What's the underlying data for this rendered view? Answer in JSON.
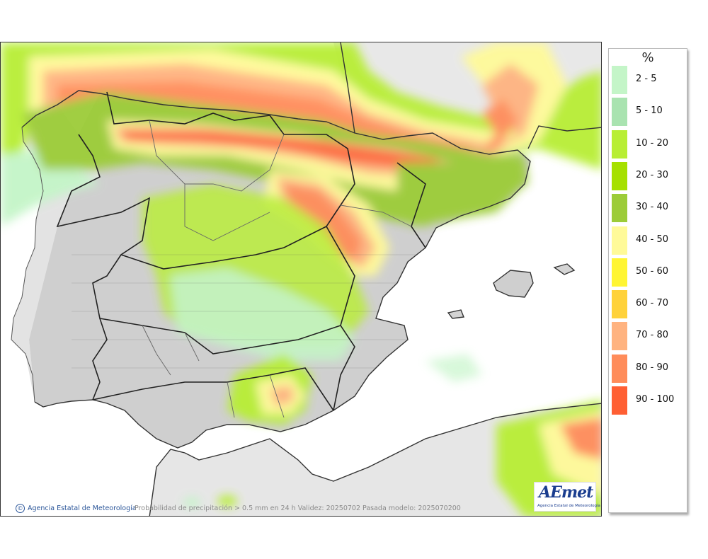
{
  "legend": {
    "title": "%",
    "items": [
      {
        "label": "2 - 5",
        "color": "#c4f5c8"
      },
      {
        "label": "5 - 10",
        "color": "#a9e3b0"
      },
      {
        "label": "10 - 20",
        "color": "#b8ee34"
      },
      {
        "label": "20 - 30",
        "color": "#a6e000"
      },
      {
        "label": "30 - 40",
        "color": "#9ccc38"
      },
      {
        "label": "40 - 50",
        "color": "#fffa99"
      },
      {
        "label": "50 - 60",
        "color": "#fff533"
      },
      {
        "label": "60 - 70",
        "color": "#ffd23a"
      },
      {
        "label": "70 - 80",
        "color": "#ffb380"
      },
      {
        "label": "80 - 90",
        "color": "#ff8c5a"
      },
      {
        "label": "90 - 100",
        "color": "#ff5f33"
      }
    ]
  },
  "footer": {
    "credit": "Agencia Estatal de Meteorología",
    "caption": "Probabilidad de precipitación > 0.5 mm en 24 h Validez: 20250702 Pasada modelo: 2025070200"
  },
  "logo": {
    "word": "AEmet",
    "subtitle": "Agencia Estatal de Meteorología"
  }
}
